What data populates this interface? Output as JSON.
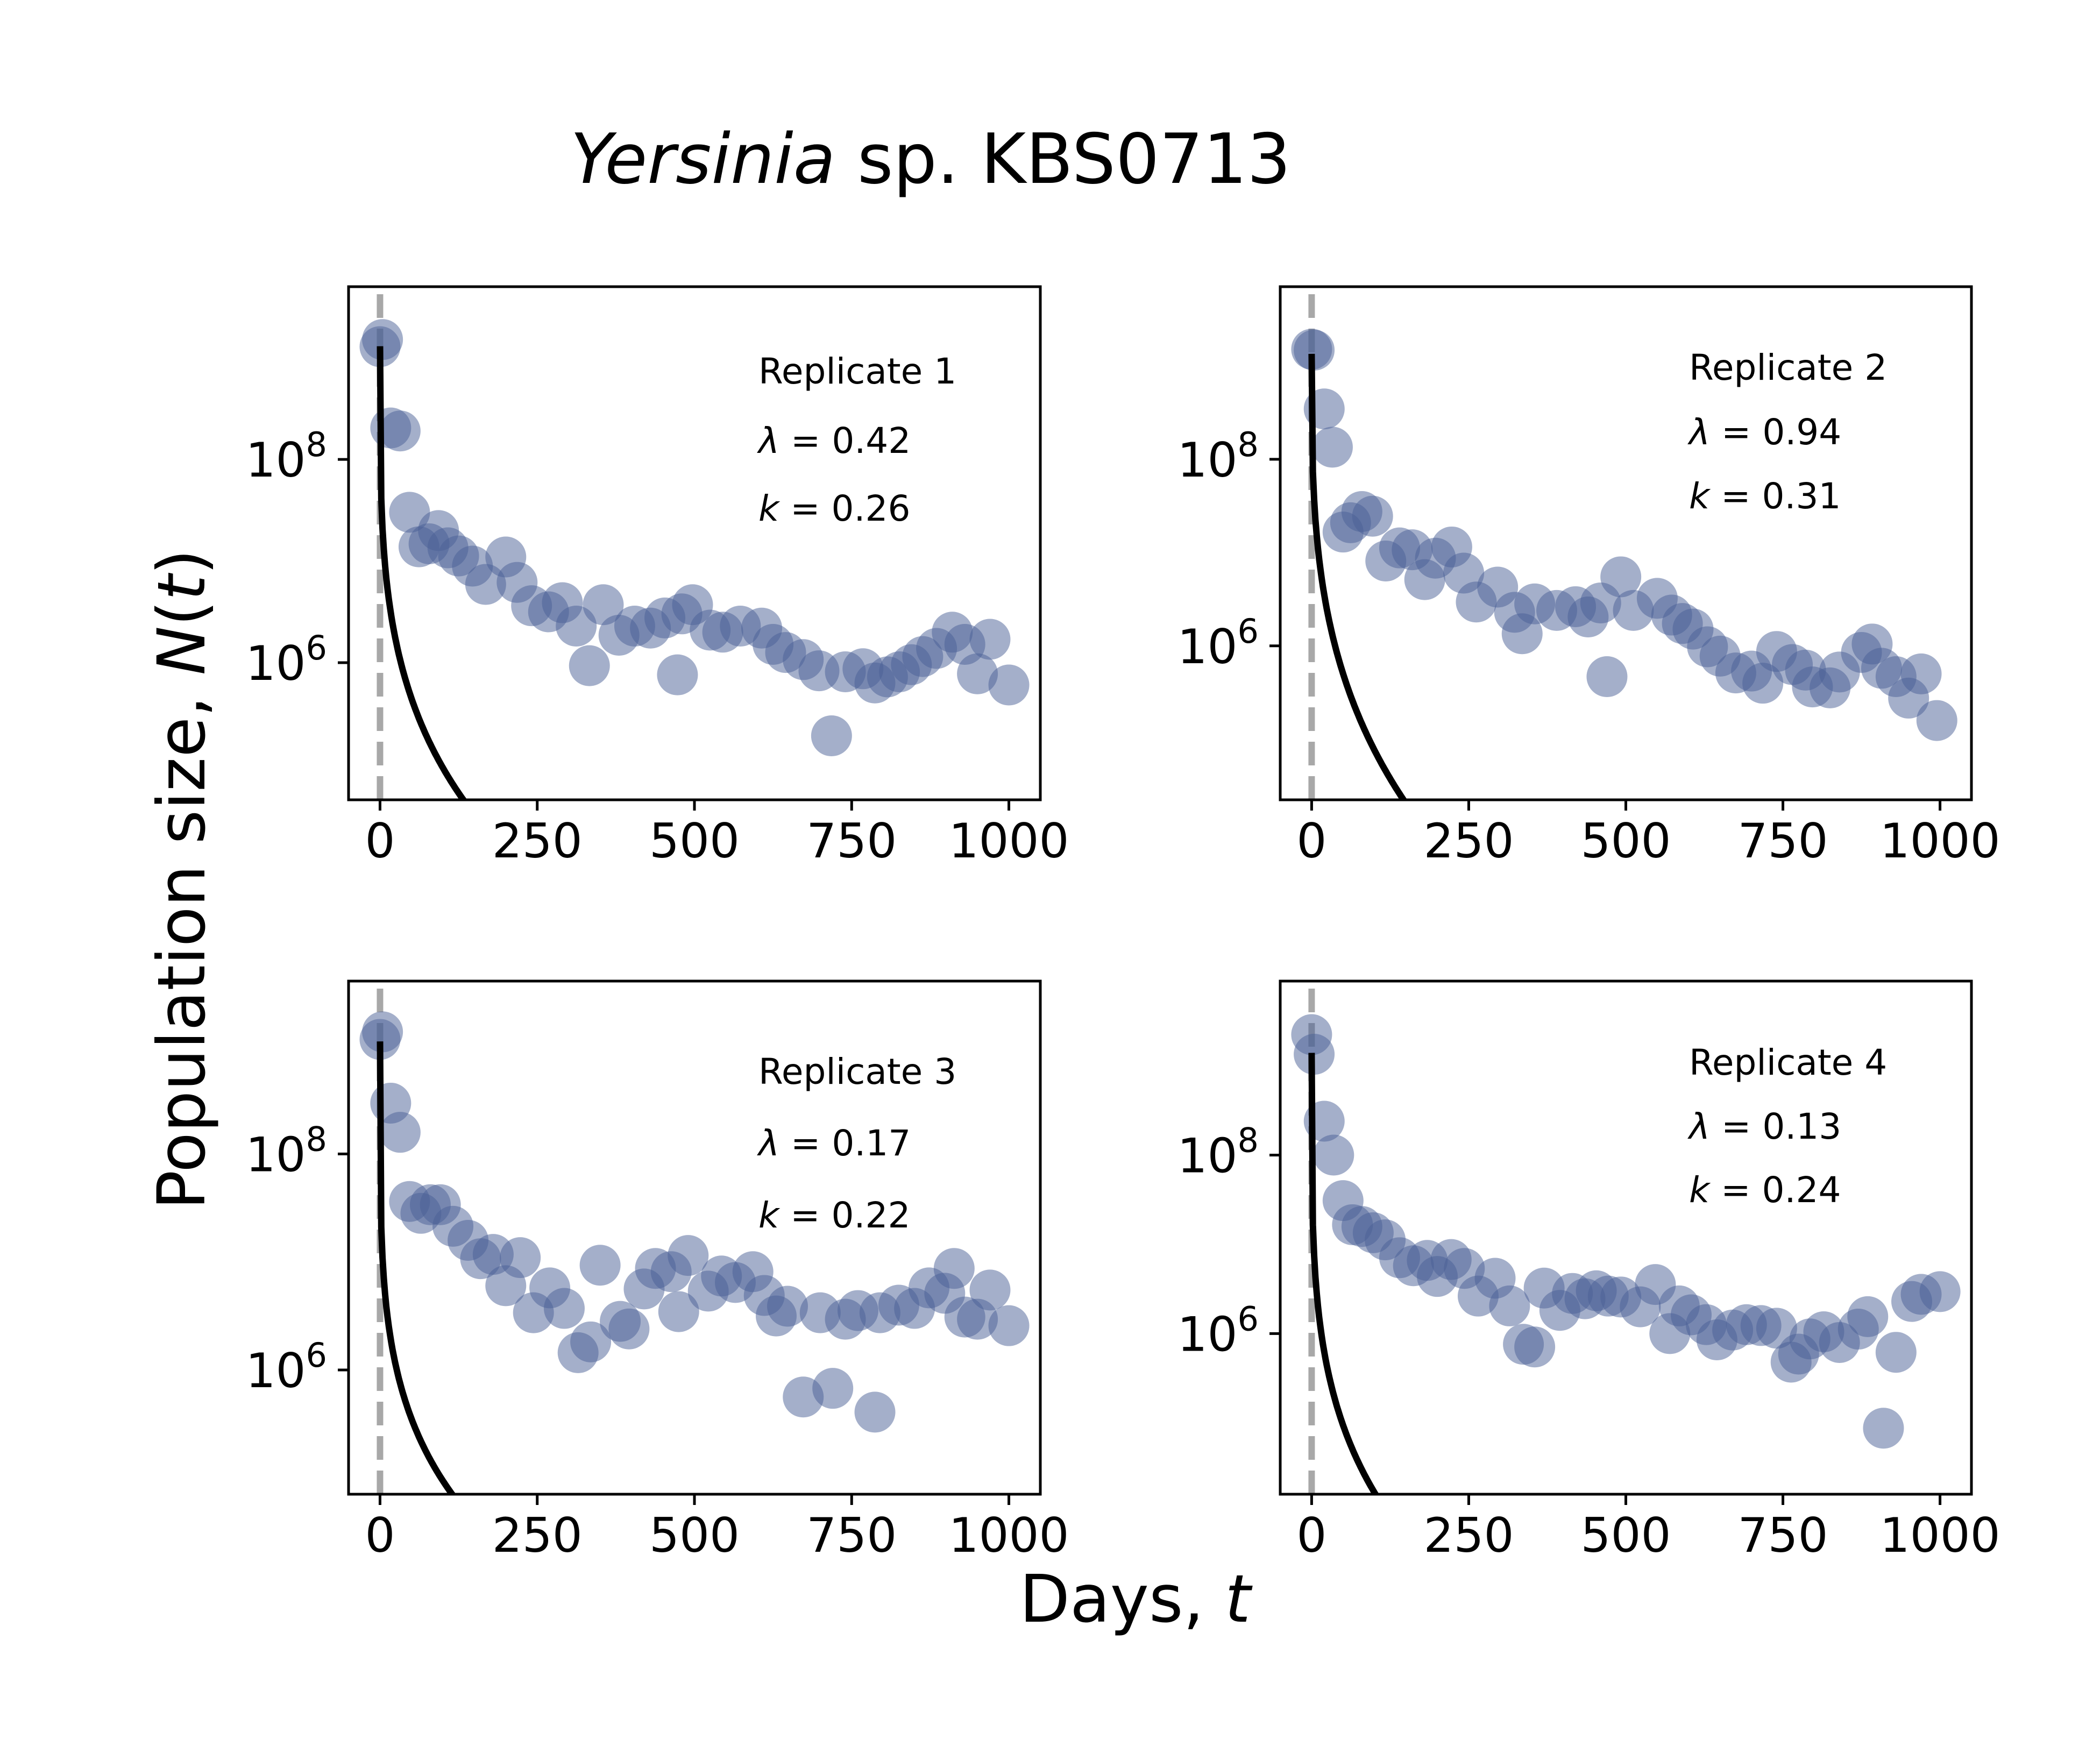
{
  "figure": {
    "title_italic": "Yersinia",
    "title_rest": " sp. KBS0713",
    "xlabel_text": "Days, ",
    "xlabel_var": "t",
    "ylabel_text": "Population size, ",
    "ylabel_var": "N",
    "ylabel_paren_open": "(",
    "ylabel_paren_var": "t",
    "ylabel_paren_close": ")"
  },
  "colors": {
    "points": "#4a5f95",
    "fit": "#000000",
    "dashed": "#a8a8a8"
  },
  "chart_data": [
    {
      "type": "scatter",
      "replicate_label": "Replicate 1",
      "lambda_symbol": "λ",
      "lambda": "0.42",
      "k_symbol": "k",
      "k": "0.26",
      "xlim": [
        -50,
        1050
      ],
      "ylim_log10": [
        4.65,
        9.7
      ],
      "xticks": [
        "0",
        "250",
        "500",
        "750",
        "1000"
      ],
      "yticks": [
        {
          "base": "10",
          "exp": "8",
          "value": 8
        },
        {
          "base": "10",
          "exp": "6",
          "value": 6
        }
      ],
      "fit": {
        "N0": 1300000000.0,
        "lambda": 0.42,
        "k": 0.26
      },
      "points": [
        [
          0,
          9.11
        ],
        [
          4,
          9.18
        ],
        [
          17,
          8.31
        ],
        [
          32,
          8.28
        ],
        [
          47,
          7.48
        ],
        [
          62,
          7.14
        ],
        [
          78,
          7.17
        ],
        [
          93,
          7.3
        ],
        [
          108,
          7.13
        ],
        [
          125,
          7.05
        ],
        [
          147,
          6.95
        ],
        [
          168,
          6.77
        ],
        [
          200,
          7.04
        ],
        [
          218,
          6.79
        ],
        [
          241,
          6.56
        ],
        [
          268,
          6.5
        ],
        [
          290,
          6.59
        ],
        [
          312,
          6.36
        ],
        [
          333,
          5.97
        ],
        [
          355,
          6.57
        ],
        [
          380,
          6.27
        ],
        [
          405,
          6.36
        ],
        [
          430,
          6.34
        ],
        [
          453,
          6.44
        ],
        [
          473,
          5.88
        ],
        [
          480,
          6.48
        ],
        [
          497,
          6.57
        ],
        [
          525,
          6.32
        ],
        [
          545,
          6.3
        ],
        [
          573,
          6.36
        ],
        [
          607,
          6.34
        ],
        [
          625,
          6.18
        ],
        [
          645,
          6.1
        ],
        [
          673,
          6.03
        ],
        [
          698,
          5.92
        ],
        [
          718,
          5.28
        ],
        [
          740,
          5.91
        ],
        [
          768,
          5.94
        ],
        [
          787,
          5.8
        ],
        [
          807,
          5.86
        ],
        [
          826,
          5.91
        ],
        [
          845,
          5.98
        ],
        [
          863,
          6.06
        ],
        [
          885,
          6.14
        ],
        [
          910,
          6.3
        ],
        [
          930,
          6.18
        ],
        [
          950,
          5.89
        ],
        [
          970,
          6.23
        ],
        [
          1000,
          5.78
        ]
      ]
    },
    {
      "type": "scatter",
      "replicate_label": "Replicate 2",
      "lambda_symbol": "λ",
      "lambda": "0.94",
      "k_symbol": "k",
      "k": "0.31",
      "xlim": [
        -50,
        1050
      ],
      "ylim_log10": [
        4.35,
        9.85
      ],
      "xticks": [
        "0",
        "250",
        "500",
        "750",
        "1000"
      ],
      "yticks": [
        {
          "base": "10",
          "exp": "8",
          "value": 8
        },
        {
          "base": "10",
          "exp": "6",
          "value": 6
        }
      ],
      "fit": {
        "N0": 1350000000.0,
        "lambda": 0.94,
        "k": 0.31
      },
      "points": [
        [
          0,
          9.18
        ],
        [
          4,
          9.17
        ],
        [
          20,
          8.54
        ],
        [
          33,
          8.13
        ],
        [
          50,
          7.22
        ],
        [
          62,
          7.32
        ],
        [
          80,
          7.44
        ],
        [
          97,
          7.39
        ],
        [
          118,
          6.91
        ],
        [
          140,
          7.05
        ],
        [
          160,
          7.03
        ],
        [
          180,
          6.71
        ],
        [
          197,
          6.94
        ],
        [
          223,
          7.06
        ],
        [
          242,
          6.78
        ],
        [
          262,
          6.47
        ],
        [
          296,
          6.63
        ],
        [
          323,
          6.36
        ],
        [
          335,
          6.13
        ],
        [
          355,
          6.45
        ],
        [
          390,
          6.38
        ],
        [
          420,
          6.42
        ],
        [
          440,
          6.31
        ],
        [
          460,
          6.46
        ],
        [
          470,
          5.67
        ],
        [
          492,
          6.74
        ],
        [
          512,
          6.38
        ],
        [
          550,
          6.51
        ],
        [
          573,
          6.33
        ],
        [
          590,
          6.24
        ],
        [
          607,
          6.18
        ],
        [
          630,
          5.99
        ],
        [
          650,
          5.89
        ],
        [
          675,
          5.71
        ],
        [
          700,
          5.73
        ],
        [
          718,
          5.6
        ],
        [
          740,
          5.94
        ],
        [
          765,
          5.8
        ],
        [
          786,
          5.74
        ],
        [
          797,
          5.56
        ],
        [
          825,
          5.55
        ],
        [
          840,
          5.72
        ],
        [
          875,
          5.93
        ],
        [
          892,
          6.02
        ],
        [
          907,
          5.76
        ],
        [
          930,
          5.67
        ],
        [
          950,
          5.44
        ],
        [
          970,
          5.7
        ],
        [
          995,
          5.2
        ]
      ]
    },
    {
      "type": "scatter",
      "replicate_label": "Replicate 3",
      "lambda_symbol": "λ",
      "lambda": "0.17",
      "k_symbol": "k",
      "k": "0.22",
      "xlim": [
        -50,
        1050
      ],
      "ylim_log10": [
        4.85,
        9.6
      ],
      "xticks": [
        "0",
        "250",
        "500",
        "750",
        "1000"
      ],
      "yticks": [
        {
          "base": "10",
          "exp": "8",
          "value": 8
        },
        {
          "base": "10",
          "exp": "6",
          "value": 6
        }
      ],
      "fit": {
        "N0": 1100000000.0,
        "lambda": 0.17,
        "k": 0.22
      },
      "points": [
        [
          0,
          9.06
        ],
        [
          4,
          9.13
        ],
        [
          17,
          8.47
        ],
        [
          32,
          8.2
        ],
        [
          47,
          7.56
        ],
        [
          65,
          7.45
        ],
        [
          80,
          7.53
        ],
        [
          96,
          7.53
        ],
        [
          116,
          7.33
        ],
        [
          140,
          7.2
        ],
        [
          160,
          7.03
        ],
        [
          180,
          7.07
        ],
        [
          200,
          6.78
        ],
        [
          223,
          7.04
        ],
        [
          244,
          6.53
        ],
        [
          270,
          6.76
        ],
        [
          293,
          6.57
        ],
        [
          315,
          6.16
        ],
        [
          335,
          6.26
        ],
        [
          350,
          6.97
        ],
        [
          382,
          6.45
        ],
        [
          396,
          6.38
        ],
        [
          420,
          6.75
        ],
        [
          438,
          6.94
        ],
        [
          463,
          6.91
        ],
        [
          475,
          6.54
        ],
        [
          490,
          7.06
        ],
        [
          522,
          6.73
        ],
        [
          543,
          6.87
        ],
        [
          565,
          6.81
        ],
        [
          593,
          6.91
        ],
        [
          611,
          6.69
        ],
        [
          630,
          6.5
        ],
        [
          648,
          6.59
        ],
        [
          673,
          5.75
        ],
        [
          700,
          6.53
        ],
        [
          720,
          5.83
        ],
        [
          740,
          6.47
        ],
        [
          760,
          6.55
        ],
        [
          787,
          5.61
        ],
        [
          795,
          6.53
        ],
        [
          825,
          6.6
        ],
        [
          850,
          6.57
        ],
        [
          873,
          6.76
        ],
        [
          898,
          6.71
        ],
        [
          913,
          6.94
        ],
        [
          930,
          6.49
        ],
        [
          950,
          6.47
        ],
        [
          970,
          6.74
        ],
        [
          1000,
          6.41
        ]
      ]
    },
    {
      "type": "scatter",
      "replicate_label": "Replicate 4",
      "lambda_symbol": "λ",
      "lambda": "0.13",
      "k_symbol": "k",
      "k": "0.24",
      "xlim": [
        -50,
        1050
      ],
      "ylim_log10": [
        4.2,
        9.95
      ],
      "xticks": [
        "0",
        "250",
        "500",
        "750",
        "1000"
      ],
      "yticks": [
        {
          "base": "10",
          "exp": "8",
          "value": 8
        },
        {
          "base": "10",
          "exp": "6",
          "value": 6
        }
      ],
      "fit": {
        "N0": 1400000000.0,
        "lambda": 0.13,
        "k": 0.24
      },
      "points": [
        [
          0,
          9.35
        ],
        [
          4,
          9.13
        ],
        [
          20,
          8.38
        ],
        [
          35,
          8.0
        ],
        [
          50,
          7.49
        ],
        [
          65,
          7.22
        ],
        [
          80,
          7.2
        ],
        [
          98,
          7.13
        ],
        [
          117,
          7.05
        ],
        [
          140,
          6.85
        ],
        [
          162,
          6.76
        ],
        [
          184,
          6.82
        ],
        [
          200,
          6.64
        ],
        [
          222,
          6.83
        ],
        [
          243,
          6.73
        ],
        [
          265,
          6.42
        ],
        [
          292,
          6.62
        ],
        [
          315,
          6.31
        ],
        [
          337,
          5.88
        ],
        [
          355,
          5.85
        ],
        [
          370,
          6.51
        ],
        [
          395,
          6.26
        ],
        [
          415,
          6.45
        ],
        [
          435,
          6.39
        ],
        [
          453,
          6.48
        ],
        [
          472,
          6.42
        ],
        [
          492,
          6.41
        ],
        [
          523,
          6.3
        ],
        [
          547,
          6.55
        ],
        [
          570,
          6.0
        ],
        [
          585,
          6.31
        ],
        [
          604,
          6.21
        ],
        [
          628,
          6.1
        ],
        [
          645,
          5.93
        ],
        [
          670,
          6.04
        ],
        [
          692,
          6.1
        ],
        [
          715,
          6.09
        ],
        [
          740,
          6.06
        ],
        [
          763,
          5.68
        ],
        [
          775,
          5.77
        ],
        [
          793,
          5.94
        ],
        [
          815,
          6.02
        ],
        [
          840,
          5.9
        ],
        [
          870,
          6.05
        ],
        [
          885,
          6.19
        ],
        [
          910,
          4.94
        ],
        [
          930,
          5.79
        ],
        [
          955,
          6.36
        ],
        [
          970,
          6.44
        ],
        [
          1000,
          6.47
        ]
      ]
    }
  ]
}
